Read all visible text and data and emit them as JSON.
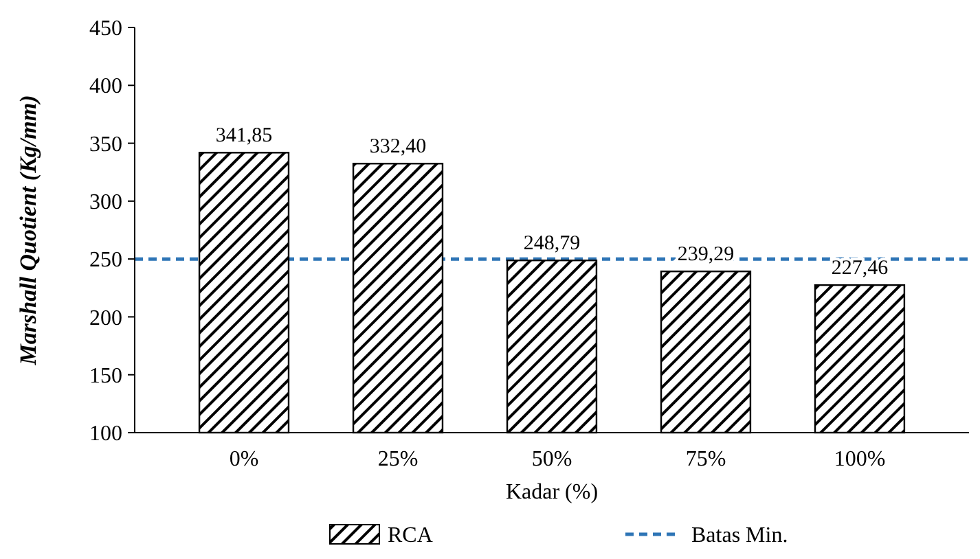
{
  "chart_data": {
    "type": "bar",
    "xlabel": "Kadar (%)",
    "ylabel": "Marshall Quotient (Kg/mm)",
    "categories": [
      "0%",
      "25%",
      "50%",
      "75%",
      "100%"
    ],
    "series": [
      {
        "name": "RCA",
        "color": "#000000",
        "values": [
          341.85,
          332.4,
          248.79,
          239.29,
          227.46
        ],
        "value_labels": [
          "341,85",
          "332,40",
          "248,79",
          "239,29",
          "227,46"
        ]
      }
    ],
    "ylim": [
      100,
      450
    ],
    "yticks": [
      100,
      150,
      200,
      250,
      300,
      350,
      400,
      450
    ],
    "ref_lines": [
      {
        "axis": "y",
        "value": 250,
        "label": "Batas Min.",
        "color": "#2e75b6",
        "line_style": "dashed"
      }
    ],
    "legend": "bottom"
  }
}
